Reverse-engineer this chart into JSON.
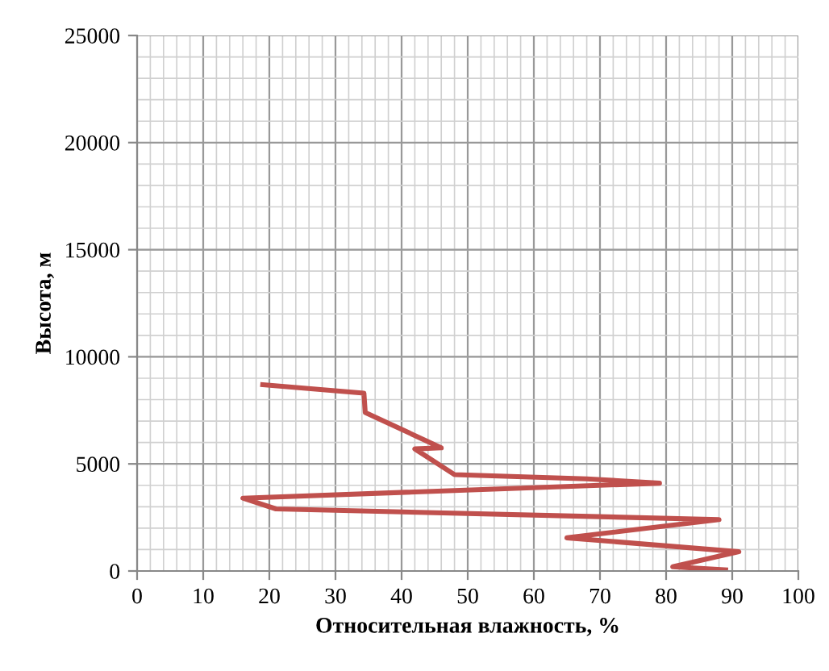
{
  "chart_data": {
    "type": "line",
    "xlabel": "Относительная влажность, %",
    "ylabel": "Высота, м",
    "series": [
      {
        "color": "#c0504d",
        "x": [
          89,
          81,
          91,
          65,
          88,
          21,
          16,
          79,
          68,
          48,
          42,
          46,
          34.5,
          34.3,
          19
        ],
        "values": [
          50,
          200,
          900,
          1550,
          2400,
          2900,
          3400,
          4100,
          4300,
          4500,
          5700,
          5750,
          7400,
          8300,
          8700
        ]
      }
    ],
    "xlim": [
      0,
      100
    ],
    "xticks": [
      0,
      10,
      20,
      30,
      40,
      50,
      60,
      70,
      80,
      90,
      100
    ],
    "ylim": [
      0,
      25000
    ],
    "yticks": [
      0,
      5000,
      10000,
      15000,
      20000,
      25000
    ],
    "grid": true,
    "marker": "none",
    "line_style": "solid",
    "legend": false
  }
}
